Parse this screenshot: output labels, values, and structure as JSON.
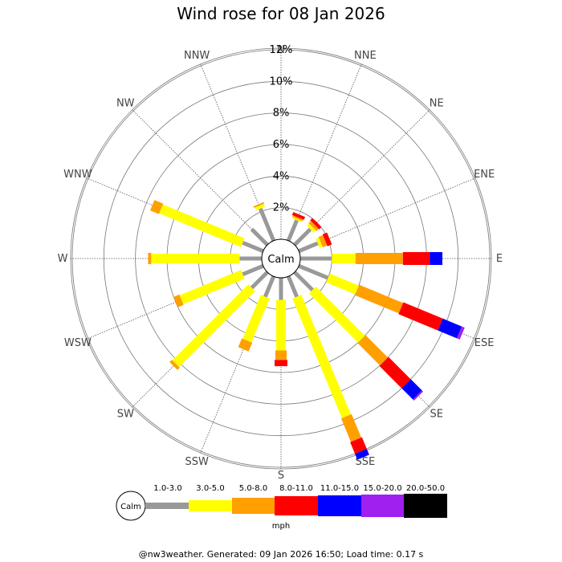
{
  "chart_data": {
    "type": "wind_rose",
    "title": "Wind rose for 08 Jan 2026",
    "calm_label": "Calm",
    "radial_ticks": [
      "2%",
      "4%",
      "6%",
      "8%",
      "10%",
      "12%"
    ],
    "radial_tick_values": [
      2,
      4,
      6,
      8,
      10,
      12
    ],
    "rmax": 12,
    "directions": [
      "N",
      "NNE",
      "NE",
      "ENE",
      "E",
      "ESE",
      "SE",
      "SSE",
      "S",
      "SSW",
      "SW",
      "WSW",
      "W",
      "WNW",
      "NW",
      "NNW"
    ],
    "bins": [
      {
        "name": "Calm",
        "color": "#999999"
      },
      {
        "name": "1.0-3.0",
        "color": "#999999"
      },
      {
        "name": "3.0-5.0",
        "color": "#ffff00"
      },
      {
        "name": "5.0-8.0",
        "color": "#ff9f00"
      },
      {
        "name": "8.0-11.0",
        "color": "#ff0000"
      },
      {
        "name": "11.0-15.0",
        "color": "#0000ff"
      },
      {
        "name": "15.0-20.0",
        "color": "#a020f0"
      },
      {
        "name": "20.0-50.0",
        "color": "#000000"
      }
    ],
    "legend_unit": "mph",
    "cumulative_values": {
      "N": [
        0,
        0,
        0,
        0,
        0,
        0,
        0
      ],
      "NNE": [
        1.4,
        1.5,
        1.6,
        1.8,
        1.8,
        1.8,
        1.8
      ],
      "NE": [
        1.4,
        1.6,
        1.8,
        2.0,
        2.0,
        2.0,
        2.0
      ],
      "ENE": [
        1.3,
        1.5,
        1.8,
        2.1,
        2.1,
        2.1,
        2.1
      ],
      "E": [
        2.0,
        3.5,
        6.5,
        8.2,
        9.0,
        9.0,
        9.0
      ],
      "ESE": [
        2.0,
        4.0,
        7.0,
        9.7,
        11.0,
        11.2,
        11.2
      ],
      "SE": [
        1.6,
        6.0,
        8.0,
        10.0,
        11.0,
        11.1,
        11.1
      ],
      "SSE": [
        1.4,
        9.6,
        11.2,
        12.0,
        12.4,
        12.4,
        12.4
      ],
      "S": [
        1.4,
        4.6,
        5.2,
        5.6,
        5.6,
        5.6,
        5.6
      ],
      "SSW": [
        1.4,
        4.4,
        5.0,
        5.0,
        5.0,
        5.0,
        5.0
      ],
      "SW": [
        1.4,
        8.2,
        8.4,
        8.4,
        8.4,
        8.4,
        8.4
      ],
      "WSW": [
        1.4,
        5.6,
        6.0,
        6.0,
        6.0,
        6.0,
        6.0
      ],
      "W": [
        1.4,
        7.0,
        7.2,
        7.2,
        7.2,
        7.2,
        7.2
      ],
      "WNW": [
        1.4,
        7.0,
        7.6,
        7.6,
        7.6,
        7.6,
        7.6
      ],
      "NW": [
        1.4,
        1.4,
        1.4,
        1.4,
        1.4,
        1.4,
        1.4
      ],
      "NNW": [
        2.2,
        2.4,
        2.5,
        2.5,
        2.5,
        2.5,
        2.5
      ]
    }
  },
  "footer": "@nw3weather. Generated: 09 Jan 2026 16:50; Load time: 0.17 s"
}
